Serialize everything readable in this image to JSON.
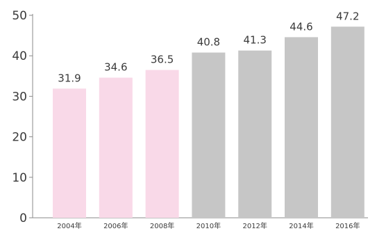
{
  "chart_data": {
    "type": "bar",
    "categories": [
      "2004年",
      "2006年",
      "2008年",
      "2010年",
      "2012年",
      "2014年",
      "2016年"
    ],
    "values": [
      31.9,
      34.6,
      36.5,
      40.8,
      41.3,
      44.6,
      47.2
    ],
    "value_labels": [
      "31.9",
      "34.6",
      "36.5",
      "40.8",
      "41.3",
      "44.6",
      "47.2"
    ],
    "bar_colors": [
      "#f9d9e8",
      "#f9d9e8",
      "#f9d9e8",
      "#c6c6c6",
      "#c6c6c6",
      "#c6c6c6",
      "#c6c6c6"
    ],
    "ylim": [
      0,
      50
    ],
    "yticks": [
      0,
      10,
      20,
      30,
      40,
      50
    ],
    "grid": false,
    "axis_color": "#8a8a8a"
  }
}
